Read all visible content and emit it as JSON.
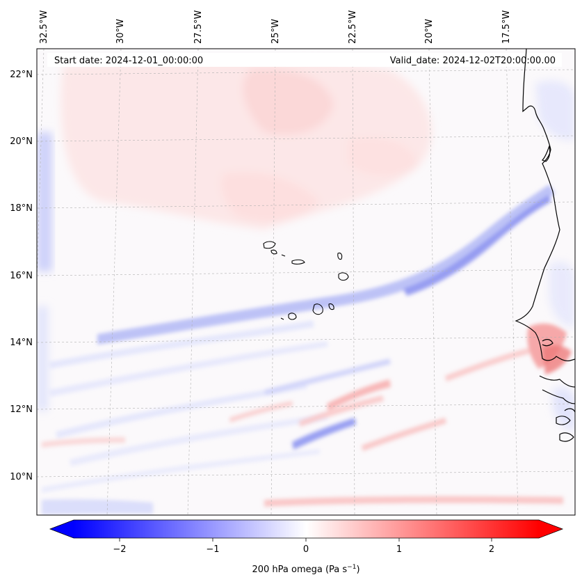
{
  "map": {
    "title_left": "Start date: 2024-12-01_00:00:00",
    "title_right": "Valid_date: 2024-12-02T20:00:00.00",
    "lon_ticks": [
      "32.5°W",
      "30°W",
      "27.5°W",
      "25°W",
      "22.5°W",
      "20°W",
      "17.5°W"
    ],
    "lat_ticks": [
      "22°N",
      "20°N",
      "18°N",
      "16°N",
      "14°N",
      "12°N",
      "10°N"
    ],
    "extent": {
      "lon_min": -33.3,
      "lon_max": -15.8,
      "lat_min": 8.8,
      "lat_max": 22.8
    },
    "field": "200 hPa omega",
    "colormap": "bwr",
    "gridlines": true
  },
  "colorbar": {
    "label_main": "200 hPa omega (Pa s",
    "label_exp": "−1",
    "label_end": ")",
    "ticks": [
      "−2",
      "−1",
      "0",
      "1",
      "2"
    ],
    "range": [
      -2.75,
      2.75
    ],
    "extend": "both"
  }
}
